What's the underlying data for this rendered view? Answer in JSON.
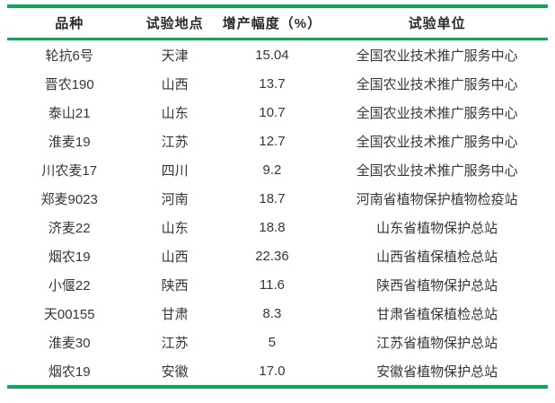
{
  "table": {
    "accent_color": "#0aa850",
    "text_color": "#363636",
    "headers": [
      "品种",
      "试验地点",
      "增产幅度（%）",
      "试验单位"
    ],
    "rows": [
      [
        "轮抗6号",
        "天津",
        "15.04",
        "全国农业技术推广服务中心"
      ],
      [
        "晋农190",
        "山西",
        "13.7",
        "全国农业技术推广服务中心"
      ],
      [
        "泰山21",
        "山东",
        "10.7",
        "全国农业技术推广服务中心"
      ],
      [
        "淮麦19",
        "江苏",
        "12.7",
        "全国农业技术推广服务中心"
      ],
      [
        "川农麦17",
        "四川",
        "9.2",
        "全国农业技术推广服务中心"
      ],
      [
        "郑麦9023",
        "河南",
        "18.7",
        "河南省植物保护植物检疫站"
      ],
      [
        "济麦22",
        "山东",
        "18.8",
        "山东省植物保护总站"
      ],
      [
        "烟农19",
        "山西",
        "22.36",
        "山西省植保植检总站"
      ],
      [
        "小偃22",
        "陕西",
        "11.6",
        "陕西省植物保护总站"
      ],
      [
        "天00155",
        "甘肃",
        "8.3",
        "甘肃省植保植检总站"
      ],
      [
        "淮麦30",
        "江苏",
        "5",
        "江苏省植物保护总站"
      ],
      [
        "烟农19",
        "安徽",
        "17.0",
        "安徽省植物保护总站"
      ]
    ]
  }
}
